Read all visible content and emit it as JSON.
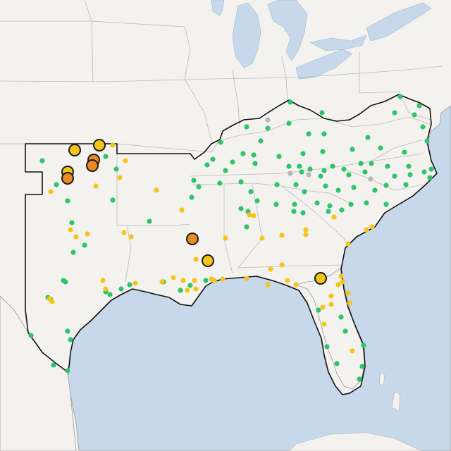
{
  "map": {
    "base_color": "#f3f2ef",
    "water_color": "#c6d8ea",
    "border_color": "#b9b9b9",
    "outline_color": "#111111"
  },
  "legend_colors": {
    "green": "#2fc46a",
    "yellow": "#f3c51b",
    "orange": "#e98a25",
    "gray": "#b7b7b7"
  },
  "markers": [
    {
      "c": "green",
      "s": "small",
      "p": [
        568,
        137
      ]
    },
    {
      "c": "green",
      "s": "small",
      "p": [
        595,
        150
      ]
    },
    {
      "c": "green",
      "s": "small",
      "p": [
        412,
        145
      ]
    },
    {
      "c": "green",
      "s": "small",
      "p": [
        457,
        160
      ]
    },
    {
      "c": "green",
      "s": "small",
      "p": [
        560,
        160
      ]
    },
    {
      "c": "green",
      "s": "small",
      "p": [
        588,
        163
      ]
    },
    {
      "c": "gray",
      "s": "small",
      "p": [
        380,
        170
      ]
    },
    {
      "c": "green",
      "s": "small",
      "p": [
        410,
        175
      ]
    },
    {
      "c": "green",
      "s": "small",
      "p": [
        350,
        180
      ]
    },
    {
      "c": "green",
      "s": "small",
      "p": [
        380,
        182
      ]
    },
    {
      "c": "green",
      "s": "small",
      "p": [
        438,
        190
      ]
    },
    {
      "c": "green",
      "s": "small",
      "p": [
        460,
        190
      ]
    },
    {
      "c": "green",
      "s": "small",
      "p": [
        522,
        195
      ]
    },
    {
      "c": "green",
      "s": "small",
      "p": [
        600,
        180
      ]
    },
    {
      "c": "green",
      "s": "small",
      "p": [
        606,
        200
      ]
    },
    {
      "c": "green",
      "s": "small",
      "p": [
        370,
        200
      ]
    },
    {
      "c": "green",
      "s": "small",
      "p": [
        313,
        202
      ]
    },
    {
      "c": "green",
      "s": "small",
      "p": [
        345,
        218
      ]
    },
    {
      "c": "green",
      "s": "small",
      "p": [
        360,
        220
      ]
    },
    {
      "c": "green",
      "s": "small",
      "p": [
        396,
        222
      ]
    },
    {
      "c": "green",
      "s": "small",
      "p": [
        430,
        218
      ]
    },
    {
      "c": "green",
      "s": "small",
      "p": [
        458,
        215
      ]
    },
    {
      "c": "green",
      "s": "small",
      "p": [
        500,
        212
      ]
    },
    {
      "c": "green",
      "s": "small",
      "p": [
        540,
        210
      ]
    },
    {
      "c": "green",
      "s": "small",
      "p": [
        574,
        216
      ]
    },
    {
      "c": "green",
      "s": "small",
      "p": [
        302,
        226
      ]
    },
    {
      "c": "green",
      "s": "small",
      "p": [
        330,
        230
      ]
    },
    {
      "c": "green",
      "s": "small",
      "p": [
        362,
        232
      ]
    },
    {
      "c": "green",
      "s": "small",
      "p": [
        294,
        234
      ]
    },
    {
      "c": "green",
      "s": "small",
      "p": [
        320,
        242
      ]
    },
    {
      "c": "green",
      "s": "small",
      "p": [
        410,
        236
      ]
    },
    {
      "c": "gray",
      "s": "small",
      "p": [
        412,
        246
      ]
    },
    {
      "c": "green",
      "s": "small",
      "p": [
        425,
        236
      ]
    },
    {
      "c": "green",
      "s": "small",
      "p": [
        428,
        244
      ]
    },
    {
      "c": "green",
      "s": "small",
      "p": [
        440,
        240
      ]
    },
    {
      "c": "green",
      "s": "small",
      "p": [
        460,
        242
      ]
    },
    {
      "c": "green",
      "s": "small",
      "p": [
        472,
        236
      ]
    },
    {
      "c": "green",
      "s": "small",
      "p": [
        488,
        240
      ]
    },
    {
      "c": "green",
      "s": "small",
      "p": [
        512,
        232
      ]
    },
    {
      "c": "green",
      "s": "small",
      "p": [
        527,
        232
      ]
    },
    {
      "c": "green",
      "s": "small",
      "p": [
        550,
        236
      ]
    },
    {
      "c": "green",
      "s": "small",
      "p": [
        580,
        236
      ]
    },
    {
      "c": "green",
      "s": "small",
      "p": [
        602,
        244
      ]
    },
    {
      "c": "green",
      "s": "small",
      "p": [
        612,
        240
      ]
    },
    {
      "c": "gray",
      "s": "small",
      "p": [
        438,
        248
      ]
    },
    {
      "c": "green",
      "s": "small",
      "p": [
        455,
        250
      ]
    },
    {
      "c": "green",
      "s": "small",
      "p": [
        495,
        248
      ]
    },
    {
      "c": "green",
      "s": "small",
      "p": [
        518,
        244
      ]
    },
    {
      "c": "gray",
      "s": "small",
      "p": [
        526,
        254
      ]
    },
    {
      "c": "green",
      "s": "small",
      "p": [
        560,
        250
      ]
    },
    {
      "c": "green",
      "s": "small",
      "p": [
        582,
        248
      ]
    },
    {
      "c": "green",
      "s": "small",
      "p": [
        610,
        252
      ]
    },
    {
      "c": "green",
      "s": "small",
      "p": [
        275,
        256
      ]
    },
    {
      "c": "green",
      "s": "small",
      "p": [
        282,
        265
      ]
    },
    {
      "c": "green",
      "s": "small",
      "p": [
        312,
        260
      ]
    },
    {
      "c": "green",
      "s": "small",
      "p": [
        342,
        258
      ]
    },
    {
      "c": "green",
      "s": "small",
      "p": [
        393,
        262
      ]
    },
    {
      "c": "green",
      "s": "small",
      "p": [
        420,
        262
      ]
    },
    {
      "c": "green",
      "s": "small",
      "p": [
        432,
        272
      ]
    },
    {
      "c": "green",
      "s": "small",
      "p": [
        462,
        264
      ]
    },
    {
      "c": "green",
      "s": "small",
      "p": [
        480,
        270
      ]
    },
    {
      "c": "green",
      "s": "small",
      "p": [
        502,
        266
      ]
    },
    {
      "c": "green",
      "s": "small",
      "p": [
        532,
        270
      ]
    },
    {
      "c": "green",
      "s": "small",
      "p": [
        548,
        263
      ]
    },
    {
      "c": "green",
      "s": "small",
      "p": [
        576,
        262
      ]
    },
    {
      "c": "green",
      "s": "small",
      "p": [
        356,
        272
      ]
    },
    {
      "c": "green",
      "s": "small",
      "p": [
        272,
        280
      ]
    },
    {
      "c": "green",
      "s": "small",
      "p": [
        365,
        285
      ]
    },
    {
      "c": "green",
      "s": "small",
      "p": [
        392,
        290
      ]
    },
    {
      "c": "green",
      "s": "small",
      "p": [
        418,
        290
      ]
    },
    {
      "c": "green",
      "s": "small",
      "p": [
        450,
        288
      ]
    },
    {
      "c": "green",
      "s": "small",
      "p": [
        468,
        292
      ]
    },
    {
      "c": "green",
      "s": "small",
      "p": [
        498,
        290
      ]
    },
    {
      "c": "green",
      "s": "small",
      "p": [
        520,
        288
      ]
    },
    {
      "c": "green",
      "s": "small",
      "p": [
        548,
        290
      ]
    },
    {
      "c": "green",
      "s": "small",
      "p": [
        342,
        296
      ]
    },
    {
      "c": "green",
      "s": "small",
      "p": [
        352,
        300
      ]
    },
    {
      "c": "green",
      "s": "small",
      "p": [
        417,
        300
      ]
    },
    {
      "c": "green",
      "s": "small",
      "p": [
        430,
        302
      ]
    },
    {
      "c": "green",
      "s": "small",
      "p": [
        466,
        300
      ]
    },
    {
      "c": "green",
      "s": "small",
      "p": [
        485,
        298
      ]
    },
    {
      "c": "green",
      "s": "small",
      "p": [
        350,
        322
      ]
    },
    {
      "c": "green",
      "s": "small",
      "p": [
        60,
        228
      ]
    },
    {
      "c": "green",
      "s": "small",
      "p": [
        150,
        222
      ]
    },
    {
      "c": "green",
      "s": "small",
      "p": [
        165,
        240
      ]
    },
    {
      "c": "green",
      "s": "small",
      "p": [
        80,
        262
      ]
    },
    {
      "c": "green",
      "s": "small",
      "p": [
        96,
        285
      ]
    },
    {
      "c": "green",
      "s": "small",
      "p": [
        160,
        284
      ]
    },
    {
      "c": "green",
      "s": "small",
      "p": [
        212,
        314
      ]
    },
    {
      "c": "green",
      "s": "small",
      "p": [
        102,
        316
      ]
    },
    {
      "c": "green",
      "s": "small",
      "p": [
        120,
        348
      ]
    },
    {
      "c": "green",
      "s": "small",
      "p": [
        104,
        358
      ]
    },
    {
      "c": "green",
      "s": "small",
      "p": [
        90,
        398
      ]
    },
    {
      "c": "green",
      "s": "small",
      "p": [
        93,
        400
      ]
    },
    {
      "c": "green",
      "s": "small",
      "p": [
        68,
        422
      ]
    },
    {
      "c": "green",
      "s": "small",
      "p": [
        72,
        425
      ]
    },
    {
      "c": "green",
      "s": "small",
      "p": [
        150,
        414
      ]
    },
    {
      "c": "green",
      "s": "small",
      "p": [
        156,
        418
      ]
    },
    {
      "c": "green",
      "s": "small",
      "p": [
        172,
        410
      ]
    },
    {
      "c": "green",
      "s": "small",
      "p": [
        184,
        404
      ]
    },
    {
      "c": "green",
      "s": "small",
      "p": [
        232,
        400
      ]
    },
    {
      "c": "green",
      "s": "small",
      "p": [
        256,
        412
      ]
    },
    {
      "c": "green",
      "s": "small",
      "p": [
        270,
        405
      ]
    },
    {
      "c": "green",
      "s": "small",
      "p": [
        292,
        398
      ]
    },
    {
      "c": "green",
      "s": "small",
      "p": [
        96,
        470
      ]
    },
    {
      "c": "green",
      "s": "small",
      "p": [
        100,
        482
      ]
    },
    {
      "c": "green",
      "s": "small",
      "p": [
        44,
        476
      ]
    },
    {
      "c": "green",
      "s": "small",
      "p": [
        76,
        518
      ]
    },
    {
      "c": "green",
      "s": "small",
      "p": [
        96,
        526
      ]
    },
    {
      "c": "green",
      "s": "small",
      "p": [
        452,
        440
      ]
    },
    {
      "c": "green",
      "s": "small",
      "p": [
        484,
        450
      ]
    },
    {
      "c": "green",
      "s": "small",
      "p": [
        490,
        470
      ]
    },
    {
      "c": "green",
      "s": "small",
      "p": [
        464,
        492
      ]
    },
    {
      "c": "green",
      "s": "small",
      "p": [
        516,
        490
      ]
    },
    {
      "c": "green",
      "s": "small",
      "p": [
        478,
        516
      ]
    },
    {
      "c": "green",
      "s": "small",
      "p": [
        514,
        520
      ]
    },
    {
      "c": "green",
      "s": "small",
      "p": [
        510,
        538
      ]
    },
    {
      "c": "yellow",
      "s": "small",
      "p": [
        160,
        206
      ]
    },
    {
      "c": "yellow",
      "s": "small",
      "p": [
        178,
        228
      ]
    },
    {
      "c": "yellow",
      "s": "small",
      "p": [
        170,
        252
      ]
    },
    {
      "c": "yellow",
      "s": "small",
      "p": [
        136,
        264
      ]
    },
    {
      "c": "yellow",
      "s": "small",
      "p": [
        222,
        270
      ]
    },
    {
      "c": "yellow",
      "s": "small",
      "p": [
        72,
        272
      ]
    },
    {
      "c": "yellow",
      "s": "small",
      "p": [
        100,
        326
      ]
    },
    {
      "c": "yellow",
      "s": "small",
      "p": [
        108,
        336
      ]
    },
    {
      "c": "yellow",
      "s": "small",
      "p": [
        124,
        332
      ]
    },
    {
      "c": "yellow",
      "s": "small",
      "p": [
        176,
        330
      ]
    },
    {
      "c": "yellow",
      "s": "small",
      "p": [
        186,
        336
      ]
    },
    {
      "c": "yellow",
      "s": "small",
      "p": [
        258,
        298
      ]
    },
    {
      "c": "yellow",
      "s": "small",
      "p": [
        354,
        305
      ]
    },
    {
      "c": "yellow",
      "s": "small",
      "p": [
        360,
        306
      ]
    },
    {
      "c": "yellow",
      "s": "small",
      "p": [
        320,
        338
      ]
    },
    {
      "c": "yellow",
      "s": "small",
      "p": [
        372,
        338
      ]
    },
    {
      "c": "yellow",
      "s": "small",
      "p": [
        400,
        334
      ]
    },
    {
      "c": "yellow",
      "s": "small",
      "p": [
        434,
        326
      ]
    },
    {
      "c": "yellow",
      "s": "small",
      "p": [
        434,
        333
      ]
    },
    {
      "c": "yellow",
      "s": "small",
      "p": [
        474,
        308
      ]
    },
    {
      "c": "yellow",
      "s": "small",
      "p": [
        520,
        326
      ]
    },
    {
      "c": "yellow",
      "s": "small",
      "p": [
        528,
        322
      ]
    },
    {
      "c": "yellow",
      "s": "small",
      "p": [
        494,
        346
      ]
    },
    {
      "c": "yellow",
      "s": "small",
      "p": [
        278,
        368
      ]
    },
    {
      "c": "yellow",
      "s": "small",
      "p": [
        384,
        382
      ]
    },
    {
      "c": "yellow",
      "s": "small",
      "p": [
        400,
        376
      ]
    },
    {
      "c": "yellow",
      "s": "small",
      "p": [
        146,
        398
      ]
    },
    {
      "c": "yellow",
      "s": "small",
      "p": [
        150,
        410
      ]
    },
    {
      "c": "yellow",
      "s": "small",
      "p": [
        192,
        402
      ]
    },
    {
      "c": "yellow",
      "s": "small",
      "p": [
        230,
        400
      ]
    },
    {
      "c": "yellow",
      "s": "small",
      "p": [
        246,
        394
      ]
    },
    {
      "c": "yellow",
      "s": "small",
      "p": [
        260,
        398
      ]
    },
    {
      "c": "yellow",
      "s": "small",
      "p": [
        266,
        412
      ]
    },
    {
      "c": "yellow",
      "s": "small",
      "p": [
        276,
        398
      ]
    },
    {
      "c": "yellow",
      "s": "small",
      "p": [
        278,
        410
      ]
    },
    {
      "c": "yellow",
      "s": "small",
      "p": [
        300,
        396
      ]
    },
    {
      "c": "yellow",
      "s": "small",
      "p": [
        304,
        398
      ]
    },
    {
      "c": "yellow",
      "s": "small",
      "p": [
        316,
        396
      ]
    },
    {
      "c": "yellow",
      "s": "small",
      "p": [
        350,
        395
      ]
    },
    {
      "c": "yellow",
      "s": "small",
      "p": [
        380,
        404
      ]
    },
    {
      "c": "yellow",
      "s": "small",
      "p": [
        408,
        398
      ]
    },
    {
      "c": "yellow",
      "s": "small",
      "p": [
        420,
        404
      ]
    },
    {
      "c": "yellow",
      "s": "small",
      "p": [
        70,
        424
      ]
    },
    {
      "c": "yellow",
      "s": "small",
      "p": [
        74,
        428
      ]
    },
    {
      "c": "yellow",
      "s": "small",
      "p": [
        484,
        392
      ]
    },
    {
      "c": "yellow",
      "s": "small",
      "p": [
        486,
        400
      ]
    },
    {
      "c": "yellow",
      "s": "small",
      "p": [
        480,
        404
      ]
    },
    {
      "c": "yellow",
      "s": "small",
      "p": [
        470,
        420
      ]
    },
    {
      "c": "yellow",
      "s": "small",
      "p": [
        470,
        432
      ]
    },
    {
      "c": "yellow",
      "s": "small",
      "p": [
        458,
        436
      ]
    },
    {
      "c": "yellow",
      "s": "small",
      "p": [
        494,
        416
      ]
    },
    {
      "c": "yellow",
      "s": "small",
      "p": [
        496,
        430
      ]
    },
    {
      "c": "yellow",
      "s": "small",
      "p": [
        460,
        460
      ]
    },
    {
      "c": "yellow",
      "s": "small",
      "p": [
        500,
        498
      ]
    },
    {
      "c": "yellow",
      "s": "large",
      "p": [
        106,
        213
      ]
    },
    {
      "c": "yellow",
      "s": "large",
      "p": [
        141,
        206
      ]
    },
    {
      "c": "yellow",
      "s": "large",
      "p": [
        96,
        244
      ]
    },
    {
      "c": "yellow",
      "s": "large",
      "p": [
        295,
        370
      ]
    },
    {
      "c": "yellow",
      "s": "large",
      "p": [
        455,
        395
      ]
    },
    {
      "c": "orange",
      "s": "large",
      "p": [
        133,
        227
      ]
    },
    {
      "c": "orange",
      "s": "large",
      "p": [
        131,
        235
      ]
    },
    {
      "c": "orange",
      "s": "large",
      "p": [
        96,
        253
      ]
    },
    {
      "c": "orange",
      "s": "large",
      "p": [
        273,
        339
      ]
    }
  ]
}
